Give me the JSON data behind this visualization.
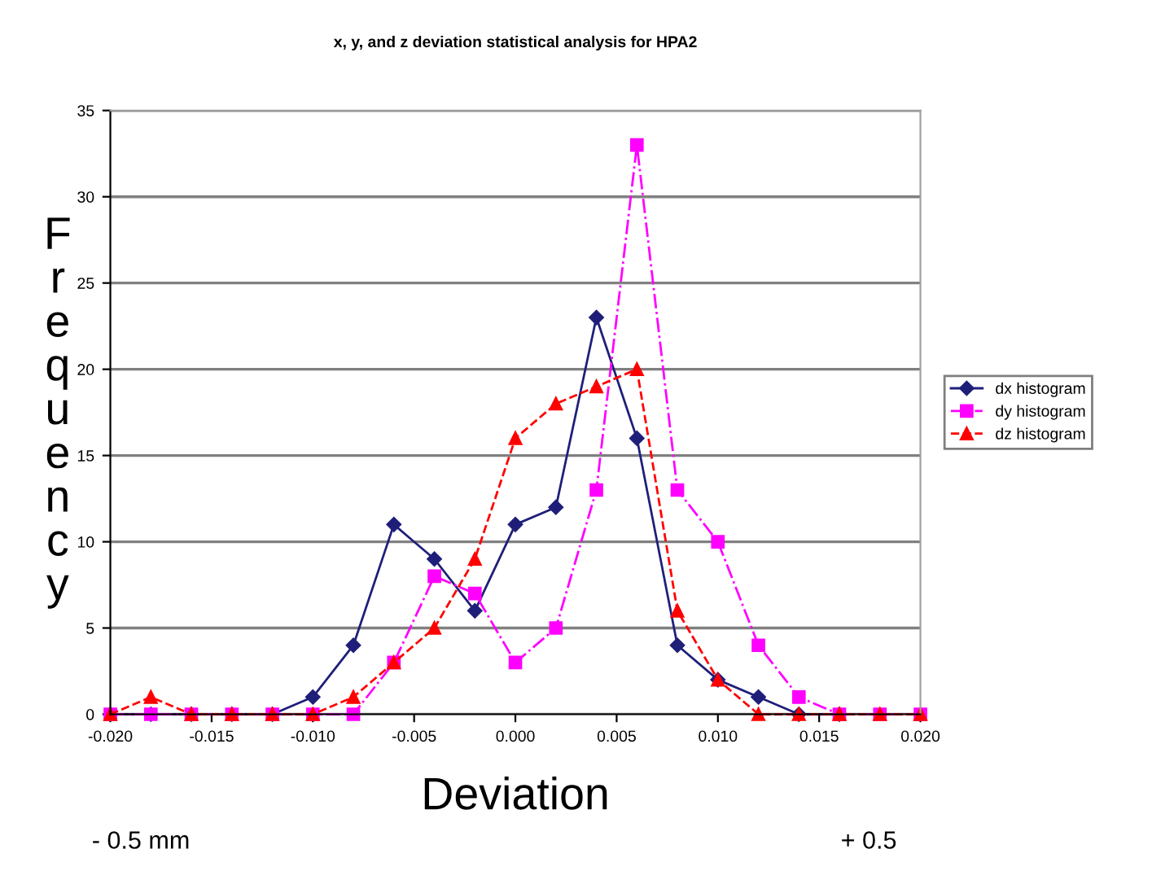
{
  "chart_data": {
    "type": "line",
    "title": "x, y, and z deviation statistical analysis for HPA2",
    "xlabel": "Deviation",
    "ylabel": "Frequency",
    "x": [
      -0.02,
      -0.018,
      -0.016,
      -0.014,
      -0.012,
      -0.01,
      -0.008,
      -0.006,
      -0.004,
      -0.002,
      0.0,
      0.002,
      0.004,
      0.006,
      0.008,
      0.01,
      0.012,
      0.014,
      0.016,
      0.018,
      0.02
    ],
    "series": [
      {
        "name": "dx histogram",
        "color": "#1f1f7a",
        "marker": "diamond",
        "line_style": "solid",
        "values": [
          0,
          0,
          0,
          0,
          0,
          1,
          4,
          11,
          9,
          6,
          11,
          12,
          23,
          16,
          4,
          2,
          1,
          0,
          0,
          null,
          null
        ]
      },
      {
        "name": "dy histogram",
        "color": "#ff00ff",
        "marker": "square",
        "line_style": "dashdot",
        "values": [
          0,
          0,
          0,
          0,
          0,
          0,
          0,
          3,
          8,
          7,
          3,
          5,
          13,
          33,
          13,
          10,
          4,
          1,
          0,
          0,
          0
        ]
      },
      {
        "name": "dz histogram",
        "color": "#ff0000",
        "marker": "triangle",
        "line_style": "dashed",
        "values": [
          0,
          1,
          0,
          0,
          0,
          0,
          1,
          3,
          5,
          9,
          16,
          18,
          19,
          20,
          6,
          2,
          0,
          0,
          0,
          0,
          0
        ]
      }
    ],
    "xlim": [
      -0.02,
      0.02
    ],
    "xticks": [
      {
        "value": -0.02,
        "label": "-0.020"
      },
      {
        "value": -0.015,
        "label": "-0.015"
      },
      {
        "value": -0.01,
        "label": "-0.010"
      },
      {
        "value": -0.005,
        "label": "-0.005"
      },
      {
        "value": 0.0,
        "label": "0.000"
      },
      {
        "value": 0.005,
        "label": "0.005"
      },
      {
        "value": 0.01,
        "label": "0.010"
      },
      {
        "value": 0.015,
        "label": "0.015"
      },
      {
        "value": 0.02,
        "label": "0.020"
      }
    ],
    "ylim": [
      0,
      35
    ],
    "yticks": [
      0,
      5,
      10,
      15,
      20,
      25,
      30,
      35
    ],
    "grid": "y",
    "legend": "right",
    "annotations": [
      "- 0.5 mm",
      "+ 0.5"
    ]
  }
}
